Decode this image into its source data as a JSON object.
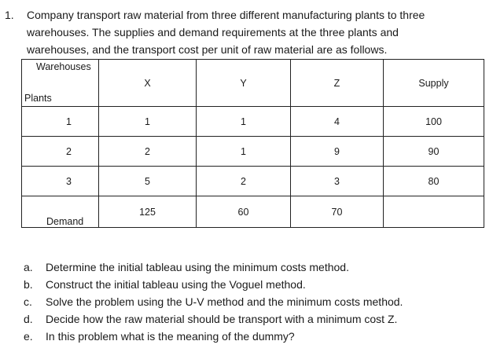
{
  "problem": {
    "number": "1.",
    "lines": [
      "Company transport raw material from three different manufacturing plants to three",
      "warehouses. The supplies and demand requirements at the three plants and",
      "warehouses, and the transport cost per unit of raw material are as follows."
    ]
  },
  "table": {
    "corner_top": "Warehouses",
    "corner_bottom": "Plants",
    "columns": [
      "X",
      "Y",
      "Z",
      "Supply"
    ],
    "rows": [
      {
        "plant": "1",
        "costs": [
          "1",
          "1",
          "4"
        ],
        "supply": "100"
      },
      {
        "plant": "2",
        "costs": [
          "2",
          "1",
          "9"
        ],
        "supply": "90"
      },
      {
        "plant": "3",
        "costs": [
          "5",
          "2",
          "3"
        ],
        "supply": "80"
      }
    ],
    "demand_label": "Demand",
    "demand": [
      "125",
      "60",
      "70"
    ]
  },
  "questions": [
    {
      "letter": "a.",
      "text": "Determine the initial tableau using the minimum costs method."
    },
    {
      "letter": "b.",
      "text": "Construct the initial tableau using the Voguel method."
    },
    {
      "letter": "c.",
      "text": "Solve the problem using the U-V method and the minimum costs method."
    },
    {
      "letter": "d.",
      "text": "Decide how the raw material should be transport with a minimum cost Z."
    },
    {
      "letter": "e.",
      "text": "In this problem what is the meaning of the dummy?"
    }
  ]
}
